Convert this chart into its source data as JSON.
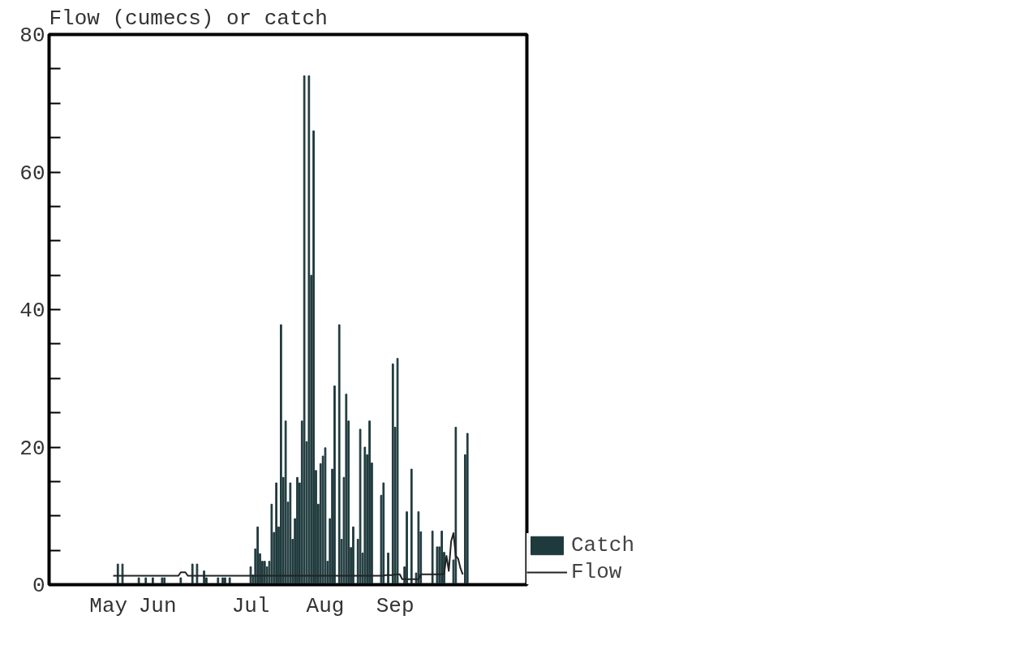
{
  "chart_data": {
    "type": "bar",
    "ylabel": "Flow (cumecs) or catch",
    "categories": [
      null,
      null,
      null,
      null,
      null,
      null,
      null,
      null,
      null,
      null,
      null,
      null,
      null,
      null,
      null,
      null,
      null,
      null,
      null,
      null,
      null,
      null,
      null,
      null,
      null,
      "May",
      null,
      null,
      null,
      null,
      null,
      null,
      null,
      null,
      null,
      null,
      null,
      null,
      null,
      null,
      null,
      null,
      null,
      null,
      null,
      null,
      "Jun",
      null,
      null,
      null,
      null,
      null,
      null,
      null,
      null,
      null,
      null,
      null,
      null,
      null,
      null,
      null,
      null,
      null,
      null,
      null,
      null,
      null,
      null,
      null,
      null,
      null,
      null,
      null,
      null,
      null,
      null,
      null,
      null,
      null,
      null,
      null,
      null,
      null,
      null,
      null,
      "Jul",
      null,
      null,
      null,
      null,
      null,
      null,
      null,
      null,
      null,
      null,
      null,
      null,
      null,
      null,
      null,
      null,
      null,
      null,
      null,
      null,
      null,
      null,
      null,
      null,
      null,
      null,
      null,
      null,
      null,
      null,
      null,
      "Aug",
      null,
      null,
      null,
      null,
      null,
      null,
      null,
      null,
      null,
      null,
      null,
      null,
      null,
      null,
      null,
      null,
      null,
      null,
      null,
      null,
      null,
      null,
      null,
      null,
      null,
      null,
      null,
      null,
      null,
      "Sep",
      null,
      null,
      null,
      null,
      null,
      null,
      null,
      null,
      null,
      null,
      null,
      null,
      null,
      null,
      null,
      null,
      null,
      null,
      null,
      null,
      null,
      null,
      null,
      null,
      null,
      null,
      null,
      null,
      null,
      null,
      null,
      null,
      null,
      null,
      null,
      null,
      null,
      null,
      null,
      null,
      null,
      null,
      null,
      null,
      null,
      null,
      null,
      null,
      null,
      null,
      null,
      null,
      null,
      null,
      null,
      null
    ],
    "ylim": [
      0,
      80
    ],
    "yticks": [
      0,
      {
        "value": 5,
        "label": null
      },
      {
        "value": 10,
        "label": null
      },
      {
        "value": 15,
        "label": null
      },
      20,
      {
        "value": 25,
        "label": null
      },
      {
        "value": 30,
        "label": null
      },
      {
        "value": 35,
        "label": null
      },
      40,
      {
        "value": 45,
        "label": null
      },
      {
        "value": 50,
        "label": null
      },
      {
        "value": 55,
        "label": null
      },
      60,
      {
        "value": 65,
        "label": null
      },
      {
        "value": 70,
        "label": null
      },
      {
        "value": 75,
        "label": null
      },
      80
    ],
    "grid": false,
    "legend": "bottom right",
    "series": [
      {
        "name": "Catch",
        "color": "#1f3a3d",
        "values": [
          null,
          null,
          null,
          null,
          null,
          null,
          null,
          null,
          null,
          null,
          null,
          null,
          null,
          null,
          null,
          null,
          null,
          null,
          null,
          null,
          null,
          null,
          null,
          null,
          null,
          null,
          null,
          null,
          null,
          3,
          null,
          3,
          null,
          null,
          null,
          null,
          null,
          null,
          1,
          null,
          null,
          1,
          null,
          null,
          1,
          null,
          null,
          null,
          1,
          1,
          null,
          null,
          null,
          null,
          null,
          null,
          1,
          null,
          null,
          null,
          null,
          3,
          null,
          3,
          null,
          null,
          2,
          1,
          null,
          null,
          null,
          null,
          1,
          null,
          1,
          1,
          null,
          1,
          null,
          null,
          null,
          null,
          null,
          null,
          null,
          null,
          2.6,
          1.4,
          5.2,
          8.4,
          4.5,
          3.4,
          3.4,
          2.6,
          3.4,
          11.7,
          7.6,
          14.8,
          8.4,
          37.8,
          15.6,
          23.8,
          12,
          14.8,
          6.6,
          9.6,
          15.6,
          14.8,
          23.8,
          74,
          20.8,
          74,
          45,
          66,
          16.6,
          11.7,
          17.6,
          18.7,
          19.9,
          3.4,
          9.6,
          16.8,
          28.9,
          null,
          37.8,
          6.6,
          15.6,
          27.7,
          23.8,
          5.4,
          8.4,
          null,
          6.6,
          22.6,
          4.6,
          20,
          18.9,
          23.8,
          17.7,
          null,
          null,
          null,
          13,
          14.8,
          null,
          4.6,
          null,
          32.1,
          22.9,
          32.9,
          null,
          null,
          2.6,
          10.6,
          null,
          16.8,
          null,
          1.7,
          10.6,
          7.7,
          null,
          null,
          null,
          null,
          7.8,
          null,
          5.5,
          5.5,
          7.8,
          4.7,
          null,
          null,
          null,
          3.6,
          22.9,
          null,
          null,
          null,
          18.9,
          22,
          null,
          null,
          null,
          null,
          null,
          null,
          null,
          null,
          null,
          null,
          null,
          null,
          null,
          null,
          null,
          null,
          null,
          null,
          null,
          null,
          null,
          null,
          null,
          null,
          null
        ]
      },
      {
        "name": "Flow",
        "type": "line",
        "color": "#222222",
        "line_style": "solid",
        "values": [
          null,
          null,
          null,
          null,
          null,
          null,
          null,
          null,
          null,
          null,
          null,
          null,
          null,
          null,
          null,
          null,
          null,
          null,
          null,
          null,
          null,
          null,
          null,
          null,
          null,
          null,
          null,
          1.3,
          1.3,
          1.3,
          1.3,
          1.3,
          1.3,
          1.3,
          1.3,
          1.3,
          1.3,
          1.3,
          1.3,
          1.3,
          1.3,
          1.3,
          1.3,
          1.3,
          1.3,
          1.3,
          1.3,
          1.3,
          1.3,
          1.3,
          1.3,
          1.3,
          1.3,
          1.3,
          1.3,
          1.3,
          1.8,
          1.8,
          1.8,
          1.3,
          1.3,
          1.3,
          1.3,
          1.3,
          1.3,
          1.3,
          1.3,
          1.3,
          1.3,
          1.3,
          1.3,
          1.3,
          1.3,
          1.3,
          1.3,
          1.3,
          1.3,
          1.3,
          1.3,
          1.3,
          1.3,
          1.3,
          1.3,
          1.3,
          1.3,
          1.3,
          1.3,
          1.3,
          1.3,
          1.3,
          1.3,
          1.3,
          1.3,
          1.3,
          1.3,
          1.3,
          1.3,
          1.3,
          1.3,
          1.3,
          1.3,
          1.3,
          1.3,
          1.3,
          1.3,
          1.3,
          1.3,
          1.3,
          1.3,
          1.3,
          1.3,
          1.3,
          1.3,
          1.3,
          1.3,
          1.3,
          1.3,
          1.3,
          1.3,
          1.3,
          1.3,
          1.3,
          1.3,
          1.3,
          1.3,
          1.3,
          1.3,
          1.3,
          1.3,
          1.3,
          1.3,
          1.3,
          1.3,
          1.3,
          1.3,
          1.3,
          1.3,
          1.3,
          1.3,
          1.3,
          1.3,
          1.3,
          1.3,
          1.3,
          1.4,
          1.4,
          1.4,
          1.4,
          1.5,
          1.5,
          1.5,
          0.8,
          0.8,
          0.8,
          0.8,
          0.8,
          0.8,
          0.8,
          0.8,
          1.5,
          1.5,
          1.5,
          1.5,
          1.5,
          1.5,
          1.5,
          1.5,
          1.5,
          1.5,
          1.6,
          4.2,
          2.0,
          6.3,
          7.5,
          4.2,
          3.8,
          2.4,
          1.5,
          null,
          null,
          null,
          null,
          null,
          null,
          null,
          null,
          null,
          null,
          null,
          null,
          null,
          null,
          null,
          null,
          null,
          null,
          null,
          null,
          null,
          null,
          null,
          null,
          null,
          null,
          null
        ]
      }
    ]
  }
}
